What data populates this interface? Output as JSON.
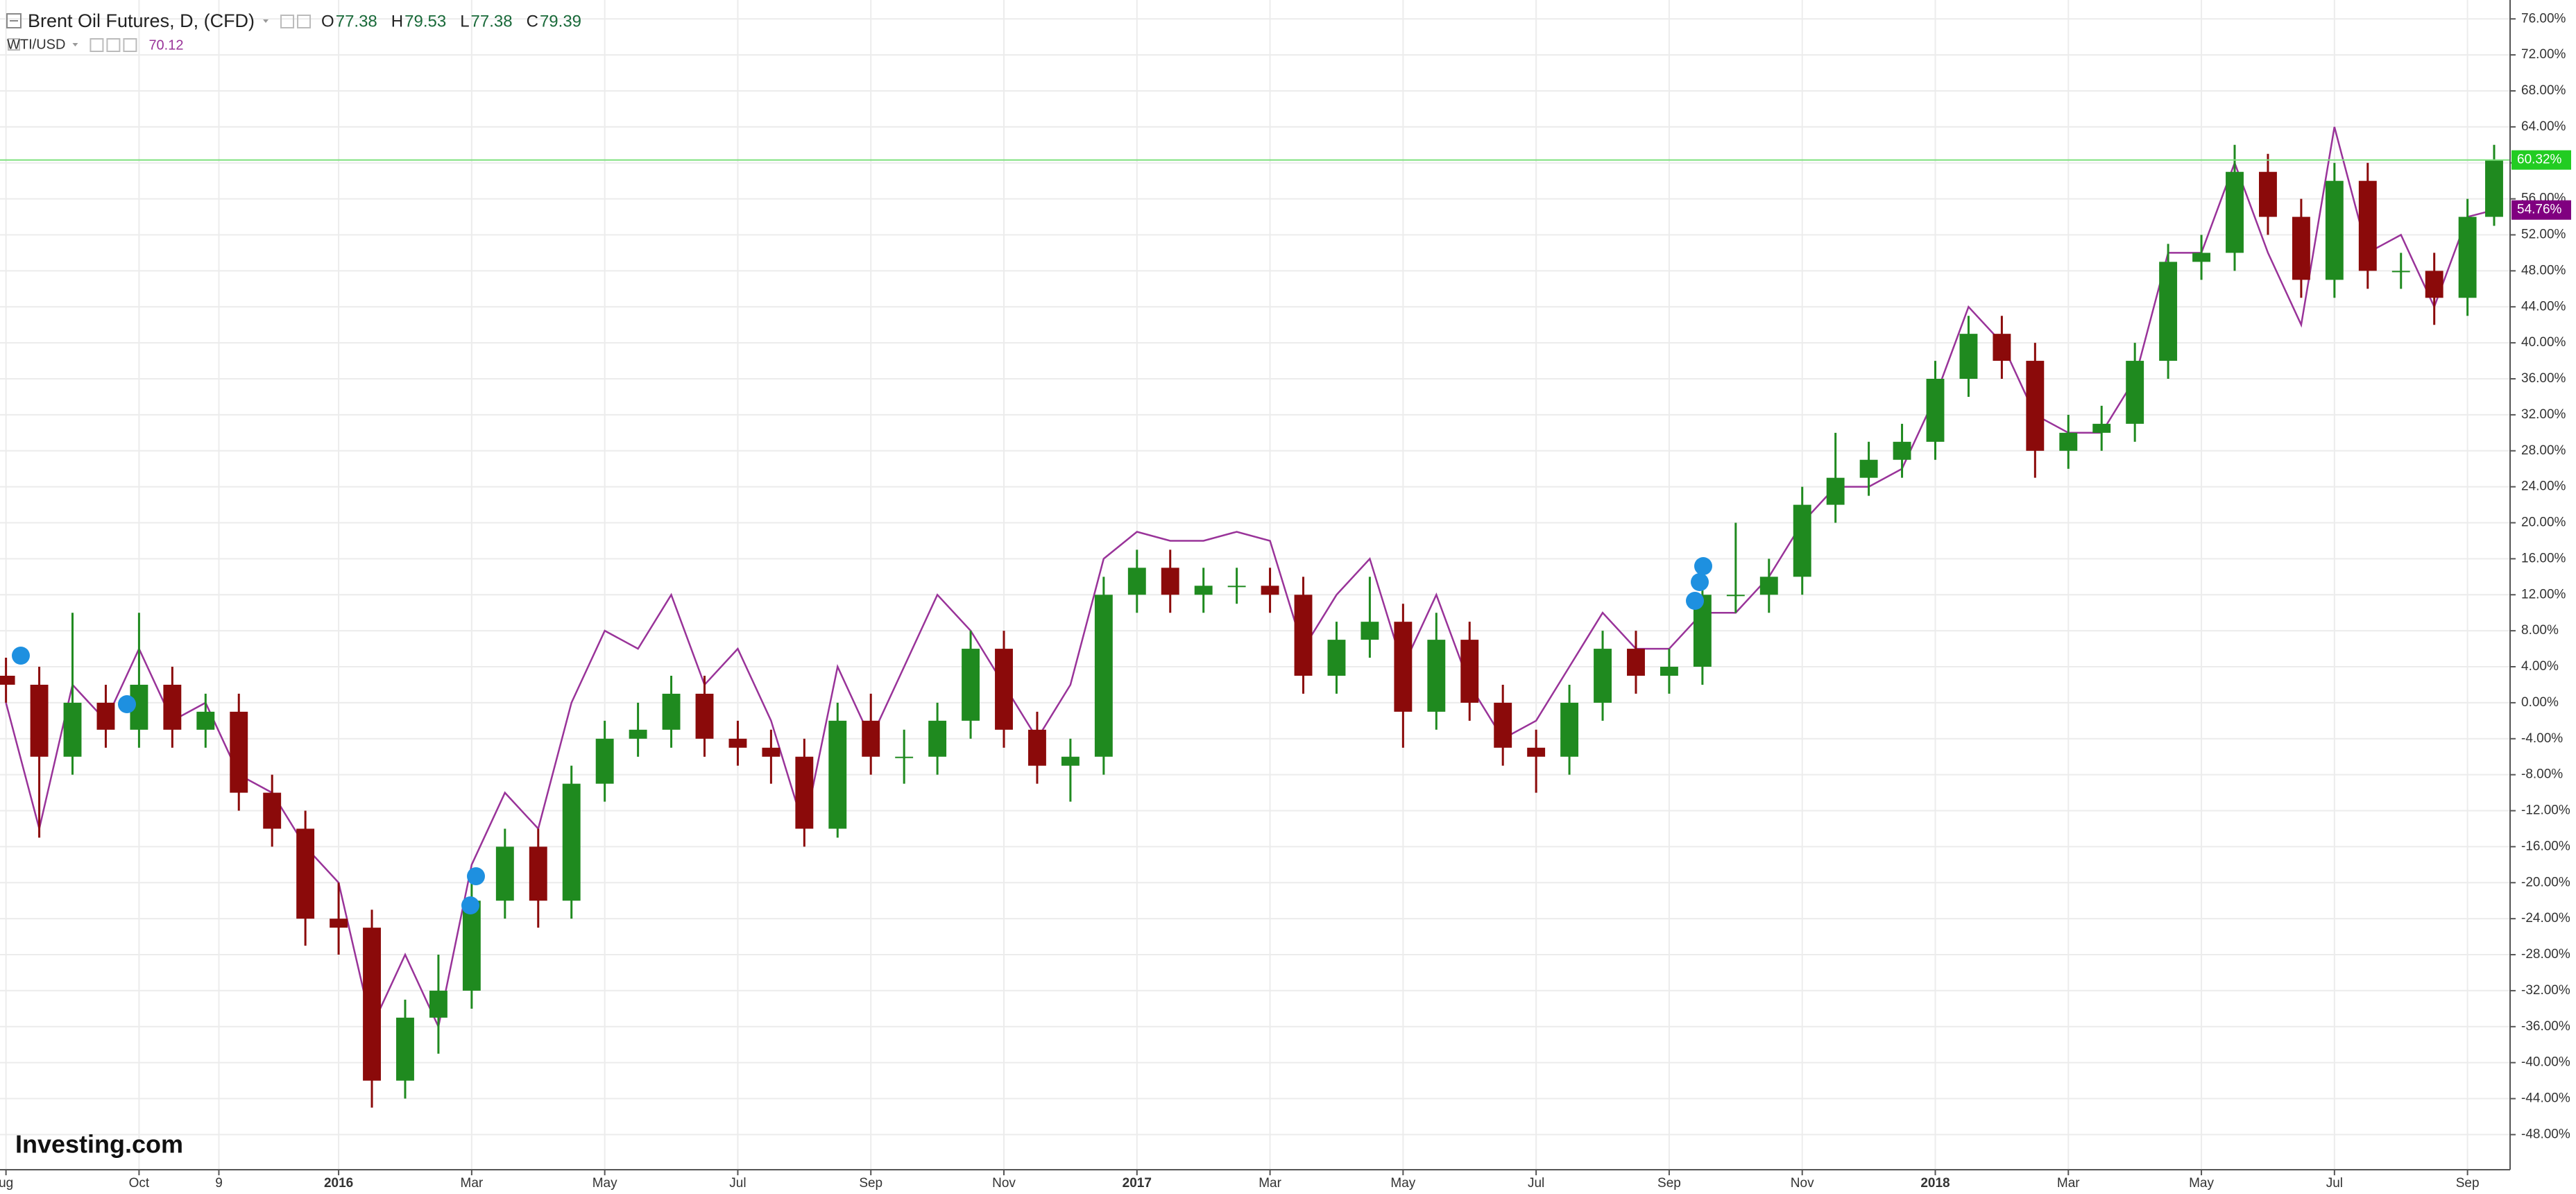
{
  "chart_data": {
    "type": "candlestick",
    "xlim": [
      -0.09,
      37.64
    ],
    "ylim": [
      -51.9,
      78.1
    ],
    "grid": true,
    "xticks": [
      {
        "value": 0,
        "label": "ug"
      },
      {
        "value": 2,
        "label": "Oct"
      },
      {
        "value": 3.2,
        "label": "9"
      },
      {
        "value": 5,
        "label": "2016"
      },
      {
        "value": 7,
        "label": "Mar"
      },
      {
        "value": 9,
        "label": "May"
      },
      {
        "value": 11,
        "label": "Jul"
      },
      {
        "value": 13,
        "label": "Sep"
      },
      {
        "value": 15,
        "label": "Nov"
      },
      {
        "value": 17,
        "label": "2017"
      },
      {
        "value": 19,
        "label": "Mar"
      },
      {
        "value": 21,
        "label": "May"
      },
      {
        "value": 23,
        "label": "Jul"
      },
      {
        "value": 25,
        "label": "Sep"
      },
      {
        "value": 27,
        "label": "Nov"
      },
      {
        "value": 29,
        "label": "2018"
      },
      {
        "value": 31,
        "label": "Mar"
      },
      {
        "value": 33,
        "label": "May"
      },
      {
        "value": 35,
        "label": "Jul"
      },
      {
        "value": 37,
        "label": "Sep"
      }
    ],
    "yticks": [
      {
        "value": 76,
        "label": "76.00%"
      },
      {
        "value": 72,
        "label": "72.00%"
      },
      {
        "value": 68,
        "label": "68.00%"
      },
      {
        "value": 64,
        "label": "64.00%"
      },
      {
        "value": 60,
        "label": "60.00%"
      },
      {
        "value": 56,
        "label": "56.00%"
      },
      {
        "value": 52,
        "label": "52.00%"
      },
      {
        "value": 48,
        "label": "48.00%"
      },
      {
        "value": 44,
        "label": "44.00%"
      },
      {
        "value": 40,
        "label": "40.00%"
      },
      {
        "value": 36,
        "label": "36.00%"
      },
      {
        "value": 32,
        "label": "32.00%"
      },
      {
        "value": 28,
        "label": "28.00%"
      },
      {
        "value": 24,
        "label": "24.00%"
      },
      {
        "value": 20,
        "label": "20.00%"
      },
      {
        "value": 16,
        "label": "16.00%"
      },
      {
        "value": 12,
        "label": "12.00%"
      },
      {
        "value": 8,
        "label": "8.00%"
      },
      {
        "value": 4,
        "label": "4.00%"
      },
      {
        "value": 0,
        "label": "0.00%"
      },
      {
        "value": -4,
        "label": "-4.00%"
      },
      {
        "value": -8,
        "label": "-8.00%"
      },
      {
        "value": -12,
        "label": "-12.00%"
      },
      {
        "value": -16,
        "label": "-16.00%"
      },
      {
        "value": -20,
        "label": "-20.00%"
      },
      {
        "value": -24,
        "label": "-24.00%"
      },
      {
        "value": -28,
        "label": "-28.00%"
      },
      {
        "value": -32,
        "label": "-32.00%"
      },
      {
        "value": -36,
        "label": "-36.00%"
      },
      {
        "value": -40,
        "label": "-40.00%"
      },
      {
        "value": -44,
        "label": "-44.00%"
      },
      {
        "value": -48,
        "label": "-48.00%"
      }
    ],
    "watermark": "Investing.com",
    "series": [
      {
        "name": "Brent Oil Futures, D, (CFD)",
        "type": "candlestick",
        "up_color": "#1f8a1f",
        "down_color": "#8b0a0a",
        "quote": [
          {
            "label": "O",
            "value": 77.38
          },
          {
            "label": "H",
            "value": 79.53
          },
          {
            "label": "L",
            "value": 77.38
          },
          {
            "label": "C",
            "value": 79.39
          }
        ],
        "last_value": 60.32,
        "last_label": "60.32%",
        "last_color": "#22cc22",
        "x": [
          0,
          0.5,
          1,
          1.5,
          2,
          2.5,
          3,
          3.5,
          4,
          4.5,
          5,
          5.5,
          6,
          6.5,
          7,
          7.5,
          8,
          8.5,
          9,
          9.5,
          10,
          10.5,
          11,
          11.5,
          12,
          12.5,
          13,
          13.5,
          14,
          14.5,
          15,
          15.5,
          16,
          16.5,
          17,
          17.5,
          18,
          18.5,
          19,
          19.5,
          20,
          20.5,
          21,
          21.5,
          22,
          22.5,
          23,
          23.5,
          24,
          24.5,
          25,
          25.5,
          26,
          26.5,
          27,
          27.5,
          28,
          28.5,
          29,
          29.5,
          30,
          30.5,
          31,
          31.5,
          32,
          32.5,
          33,
          33.5,
          34,
          34.5,
          35,
          35.5,
          36,
          36.5,
          37,
          37.4
        ],
        "open": [
          3,
          2,
          -6,
          0,
          -3,
          2,
          -3,
          -1,
          -10,
          -14,
          -24,
          -25,
          -42,
          -35,
          -32,
          -22,
          -16,
          -22,
          -9,
          -4,
          -3,
          1,
          -4,
          -5,
          -6,
          -14,
          -2,
          -6,
          -6,
          -2,
          6,
          -3,
          -7,
          -6,
          12,
          15,
          12,
          13,
          13,
          12,
          3,
          7,
          9,
          -1,
          7,
          0,
          -5,
          -6,
          0,
          6,
          3,
          4,
          12,
          12,
          14,
          22,
          25,
          27,
          29,
          36,
          41,
          38,
          28,
          30,
          31,
          38,
          49,
          50,
          59,
          54,
          47,
          58,
          48,
          48,
          45,
          54
        ],
        "high": [
          5,
          4,
          10,
          2,
          10,
          4,
          1,
          1,
          -8,
          -12,
          -20,
          -23,
          -33,
          -28,
          -20,
          -14,
          -14,
          -7,
          -2,
          0,
          3,
          3,
          -2,
          -3,
          -4,
          0,
          1,
          -3,
          0,
          8,
          8,
          -1,
          -4,
          14,
          17,
          17,
          15,
          15,
          15,
          14,
          9,
          14,
          11,
          10,
          9,
          2,
          -3,
          2,
          8,
          8,
          6,
          14,
          20,
          16,
          24,
          30,
          29,
          31,
          38,
          43,
          43,
          40,
          32,
          33,
          40,
          51,
          52,
          62,
          61,
          56,
          60,
          60,
          50,
          50,
          56,
          62
        ],
        "low": [
          0,
          -15,
          -8,
          -5,
          -5,
          -5,
          -5,
          -12,
          -16,
          -27,
          -28,
          -45,
          -44,
          -39,
          -34,
          -24,
          -25,
          -24,
          -11,
          -6,
          -5,
          -6,
          -7,
          -9,
          -16,
          -15,
          -8,
          -9,
          -8,
          -4,
          -5,
          -9,
          -11,
          -8,
          10,
          10,
          10,
          11,
          10,
          1,
          1,
          5,
          -5,
          -3,
          -2,
          -7,
          -10,
          -8,
          -2,
          1,
          1,
          2,
          10,
          10,
          12,
          20,
          23,
          25,
          27,
          34,
          36,
          25,
          26,
          28,
          29,
          36,
          47,
          48,
          52,
          45,
          45,
          46,
          46,
          42,
          43,
          53
        ],
        "close": [
          2,
          -6,
          0,
          -3,
          2,
          -3,
          -1,
          -10,
          -14,
          -24,
          -25,
          -42,
          -35,
          -32,
          -22,
          -16,
          -22,
          -9,
          -4,
          -3,
          1,
          -4,
          -5,
          -6,
          -14,
          -2,
          -6,
          -6,
          -2,
          6,
          -3,
          -7,
          -6,
          12,
          15,
          12,
          13,
          13,
          12,
          3,
          7,
          9,
          -1,
          7,
          0,
          -5,
          -6,
          0,
          6,
          3,
          4,
          12,
          12,
          14,
          22,
          25,
          27,
          29,
          36,
          41,
          38,
          28,
          30,
          31,
          38,
          49,
          50,
          59,
          54,
          47,
          58,
          48,
          48,
          45,
          54,
          60.32
        ]
      },
      {
        "name": "WTI/USD",
        "type": "line",
        "color": "#993399",
        "price": 70.12,
        "last_value": 54.76,
        "last_label": "54.76%",
        "last_color": "#800080",
        "x": [
          0,
          0.5,
          1,
          1.5,
          2,
          2.5,
          3,
          3.5,
          4,
          4.5,
          5,
          5.5,
          6,
          6.5,
          7,
          7.5,
          8,
          8.5,
          9,
          9.5,
          10,
          10.5,
          11,
          11.5,
          12,
          12.5,
          13,
          13.5,
          14,
          14.5,
          15,
          15.5,
          16,
          16.5,
          17,
          17.5,
          18,
          18.5,
          19,
          19.5,
          20,
          20.5,
          21,
          21.5,
          22,
          22.5,
          23,
          23.5,
          24,
          24.5,
          25,
          25.5,
          26,
          26.5,
          27,
          27.5,
          28,
          28.5,
          29,
          29.5,
          30,
          30.5,
          31,
          31.5,
          32,
          32.5,
          33,
          33.5,
          34,
          34.5,
          35,
          35.5,
          36,
          36.5,
          37,
          37.4
        ],
        "values": [
          0,
          -14,
          2,
          -2,
          6,
          -2,
          0,
          -8,
          -10,
          -16,
          -20,
          -36,
          -28,
          -36,
          -18,
          -10,
          -14,
          0,
          8,
          6,
          12,
          2,
          6,
          -2,
          -14,
          4,
          -4,
          4,
          12,
          8,
          2,
          -4,
          2,
          16,
          19,
          18,
          18,
          19,
          18,
          6,
          12,
          16,
          4,
          12,
          2,
          -4,
          -2,
          4,
          10,
          6,
          6,
          10,
          10,
          14,
          20,
          24,
          24,
          26,
          34,
          44,
          40,
          32,
          30,
          30,
          36,
          50,
          50,
          60,
          50,
          42,
          64,
          50,
          52,
          44,
          54,
          54.76
        ]
      }
    ]
  }
}
